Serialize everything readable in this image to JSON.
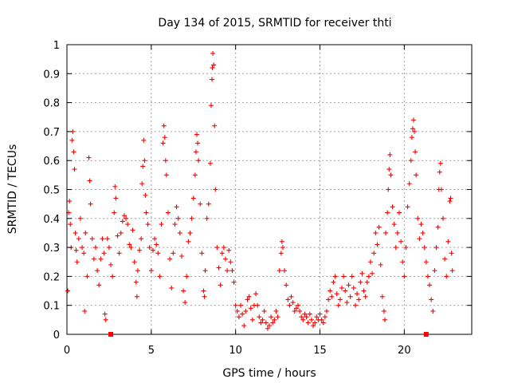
{
  "chart_data": {
    "type": "scatter",
    "title": "Day 134 of 2015, SRMTID for receiver thti",
    "xlabel": "GPS time / hours",
    "ylabel": "SRMTID / TECUs",
    "xlim": [
      0,
      24
    ],
    "ylim": [
      0,
      1
    ],
    "xticks": [
      0,
      5,
      10,
      15,
      20
    ],
    "yticks": [
      0,
      0.1,
      0.2,
      0.3,
      0.4,
      0.5,
      0.6,
      0.7,
      0.8,
      0.9,
      1
    ],
    "grid": true,
    "marker": "plus",
    "color": "#ff0000",
    "gap_markers_x": [
      2.6,
      21.3
    ],
    "series": [
      {
        "name": "SRMTID",
        "points": [
          [
            0.05,
            0.15
          ],
          [
            0.1,
            0.42
          ],
          [
            0.15,
            0.46
          ],
          [
            0.2,
            0.38
          ],
          [
            0.25,
            0.3
          ],
          [
            0.3,
            0.67
          ],
          [
            0.35,
            0.7
          ],
          [
            0.4,
            0.63
          ],
          [
            0.45,
            0.57
          ],
          [
            0.5,
            0.35
          ],
          [
            0.55,
            0.29
          ],
          [
            0.6,
            0.25
          ],
          [
            0.7,
            0.33
          ],
          [
            0.8,
            0.4
          ],
          [
            0.9,
            0.3
          ],
          [
            1.0,
            0.28
          ],
          [
            1.05,
            0.08
          ],
          [
            1.1,
            0.35
          ],
          [
            1.2,
            0.2
          ],
          [
            1.3,
            0.61
          ],
          [
            1.35,
            0.53
          ],
          [
            1.4,
            0.45
          ],
          [
            1.5,
            0.33
          ],
          [
            1.6,
            0.26
          ],
          [
            1.7,
            0.3
          ],
          [
            1.8,
            0.22
          ],
          [
            1.9,
            0.17
          ],
          [
            2.0,
            0.26
          ],
          [
            2.1,
            0.33
          ],
          [
            2.2,
            0.28
          ],
          [
            2.25,
            0.07
          ],
          [
            2.3,
            0.05
          ],
          [
            2.4,
            0.33
          ],
          [
            2.5,
            0.3
          ],
          [
            2.6,
            0.24
          ],
          [
            2.7,
            0.2
          ],
          [
            2.8,
            0.42
          ],
          [
            2.85,
            0.51
          ],
          [
            2.9,
            0.47
          ],
          [
            3.0,
            0.34
          ],
          [
            3.1,
            0.28
          ],
          [
            3.2,
            0.35
          ],
          [
            3.3,
            0.39
          ],
          [
            3.4,
            0.41
          ],
          [
            3.5,
            0.4
          ],
          [
            3.6,
            0.38
          ],
          [
            3.7,
            0.31
          ],
          [
            3.8,
            0.3
          ],
          [
            3.9,
            0.36
          ],
          [
            4.0,
            0.25
          ],
          [
            4.1,
            0.18
          ],
          [
            4.15,
            0.13
          ],
          [
            4.2,
            0.22
          ],
          [
            4.3,
            0.29
          ],
          [
            4.4,
            0.33
          ],
          [
            4.45,
            0.52
          ],
          [
            4.5,
            0.58
          ],
          [
            4.55,
            0.67
          ],
          [
            4.6,
            0.6
          ],
          [
            4.65,
            0.48
          ],
          [
            4.7,
            0.42
          ],
          [
            4.8,
            0.38
          ],
          [
            4.9,
            0.3
          ],
          [
            5.0,
            0.22
          ],
          [
            5.1,
            0.29
          ],
          [
            5.2,
            0.33
          ],
          [
            5.3,
            0.31
          ],
          [
            5.4,
            0.28
          ],
          [
            5.5,
            0.2
          ],
          [
            5.6,
            0.38
          ],
          [
            5.7,
            0.66
          ],
          [
            5.75,
            0.72
          ],
          [
            5.8,
            0.68
          ],
          [
            5.85,
            0.6
          ],
          [
            5.9,
            0.55
          ],
          [
            6.0,
            0.42
          ],
          [
            6.1,
            0.26
          ],
          [
            6.2,
            0.16
          ],
          [
            6.3,
            0.28
          ],
          [
            6.4,
            0.38
          ],
          [
            6.5,
            0.44
          ],
          [
            6.6,
            0.4
          ],
          [
            6.7,
            0.35
          ],
          [
            6.8,
            0.27
          ],
          [
            6.9,
            0.15
          ],
          [
            7.0,
            0.11
          ],
          [
            7.1,
            0.2
          ],
          [
            7.2,
            0.32
          ],
          [
            7.3,
            0.35
          ],
          [
            7.4,
            0.4
          ],
          [
            7.5,
            0.47
          ],
          [
            7.6,
            0.55
          ],
          [
            7.65,
            0.63
          ],
          [
            7.7,
            0.69
          ],
          [
            7.75,
            0.66
          ],
          [
            7.8,
            0.6
          ],
          [
            7.9,
            0.45
          ],
          [
            8.0,
            0.28
          ],
          [
            8.1,
            0.15
          ],
          [
            8.15,
            0.13
          ],
          [
            8.2,
            0.22
          ],
          [
            8.3,
            0.4
          ],
          [
            8.4,
            0.45
          ],
          [
            8.5,
            0.59
          ],
          [
            8.55,
            0.79
          ],
          [
            8.6,
            0.88
          ],
          [
            8.62,
            0.92
          ],
          [
            8.65,
            0.97
          ],
          [
            8.7,
            0.93
          ],
          [
            8.75,
            0.72
          ],
          [
            8.8,
            0.5
          ],
          [
            8.9,
            0.3
          ],
          [
            9.0,
            0.23
          ],
          [
            9.1,
            0.17
          ],
          [
            9.2,
            0.28
          ],
          [
            9.3,
            0.3
          ],
          [
            9.4,
            0.26
          ],
          [
            9.5,
            0.22
          ],
          [
            9.6,
            0.29
          ],
          [
            9.7,
            0.25
          ],
          [
            9.8,
            0.22
          ],
          [
            9.9,
            0.18
          ],
          [
            10.0,
            0.1
          ],
          [
            10.1,
            0.08
          ],
          [
            10.2,
            0.06
          ],
          [
            10.3,
            0.1
          ],
          [
            10.4,
            0.07
          ],
          [
            10.5,
            0.03
          ],
          [
            10.6,
            0.08
          ],
          [
            10.7,
            0.12
          ],
          [
            10.8,
            0.13
          ],
          [
            10.9,
            0.09
          ],
          [
            11.0,
            0.05
          ],
          [
            11.1,
            0.1
          ],
          [
            11.2,
            0.14
          ],
          [
            11.3,
            0.1
          ],
          [
            11.4,
            0.06
          ],
          [
            11.5,
            0.04
          ],
          [
            11.6,
            0.05
          ],
          [
            11.7,
            0.08
          ],
          [
            11.8,
            0.04
          ],
          [
            11.9,
            0.02
          ],
          [
            12.0,
            0.03
          ],
          [
            12.1,
            0.06
          ],
          [
            12.2,
            0.04
          ],
          [
            12.3,
            0.05
          ],
          [
            12.4,
            0.08
          ],
          [
            12.5,
            0.06
          ],
          [
            12.6,
            0.22
          ],
          [
            12.7,
            0.28
          ],
          [
            12.75,
            0.32
          ],
          [
            12.8,
            0.3
          ],
          [
            12.9,
            0.22
          ],
          [
            13.0,
            0.17
          ],
          [
            13.1,
            0.12
          ],
          [
            13.2,
            0.1
          ],
          [
            13.3,
            0.13
          ],
          [
            13.4,
            0.11
          ],
          [
            13.5,
            0.08
          ],
          [
            13.6,
            0.09
          ],
          [
            13.7,
            0.1
          ],
          [
            13.8,
            0.08
          ],
          [
            13.9,
            0.06
          ],
          [
            14.0,
            0.05
          ],
          [
            14.1,
            0.07
          ],
          [
            14.2,
            0.06
          ],
          [
            14.3,
            0.04
          ],
          [
            14.4,
            0.07
          ],
          [
            14.5,
            0.05
          ],
          [
            14.6,
            0.03
          ],
          [
            14.7,
            0.04
          ],
          [
            14.8,
            0.06
          ],
          [
            14.9,
            0.05
          ],
          [
            15.0,
            0.07
          ],
          [
            15.1,
            0.05
          ],
          [
            15.2,
            0.04
          ],
          [
            15.3,
            0.06
          ],
          [
            15.4,
            0.08
          ],
          [
            15.5,
            0.12
          ],
          [
            15.6,
            0.15
          ],
          [
            15.7,
            0.13
          ],
          [
            15.8,
            0.18
          ],
          [
            15.9,
            0.2
          ],
          [
            16.0,
            0.14
          ],
          [
            16.1,
            0.1
          ],
          [
            16.2,
            0.12
          ],
          [
            16.3,
            0.16
          ],
          [
            16.4,
            0.2
          ],
          [
            16.5,
            0.15
          ],
          [
            16.6,
            0.11
          ],
          [
            16.7,
            0.17
          ],
          [
            16.8,
            0.13
          ],
          [
            16.9,
            0.2
          ],
          [
            17.0,
            0.16
          ],
          [
            17.1,
            0.1
          ],
          [
            17.2,
            0.14
          ],
          [
            17.3,
            0.12
          ],
          [
            17.4,
            0.18
          ],
          [
            17.5,
            0.21
          ],
          [
            17.6,
            0.15
          ],
          [
            17.7,
            0.13
          ],
          [
            17.8,
            0.18
          ],
          [
            17.9,
            0.2
          ],
          [
            18.0,
            0.25
          ],
          [
            18.1,
            0.21
          ],
          [
            18.2,
            0.28
          ],
          [
            18.3,
            0.35
          ],
          [
            18.4,
            0.31
          ],
          [
            18.5,
            0.37
          ],
          [
            18.6,
            0.24
          ],
          [
            18.7,
            0.13
          ],
          [
            18.8,
            0.08
          ],
          [
            18.85,
            0.05
          ],
          [
            18.9,
            0.35
          ],
          [
            19.0,
            0.42
          ],
          [
            19.05,
            0.5
          ],
          [
            19.1,
            0.57
          ],
          [
            19.15,
            0.62
          ],
          [
            19.2,
            0.55
          ],
          [
            19.3,
            0.44
          ],
          [
            19.4,
            0.38
          ],
          [
            19.5,
            0.3
          ],
          [
            19.6,
            0.35
          ],
          [
            19.7,
            0.42
          ],
          [
            19.8,
            0.32
          ],
          [
            19.9,
            0.25
          ],
          [
            20.0,
            0.2
          ],
          [
            20.1,
            0.3
          ],
          [
            20.2,
            0.44
          ],
          [
            20.3,
            0.52
          ],
          [
            20.4,
            0.6
          ],
          [
            20.45,
            0.68
          ],
          [
            20.5,
            0.71
          ],
          [
            20.55,
            0.74
          ],
          [
            20.6,
            0.7
          ],
          [
            20.65,
            0.63
          ],
          [
            20.7,
            0.55
          ],
          [
            20.8,
            0.4
          ],
          [
            20.9,
            0.33
          ],
          [
            21.0,
            0.38
          ],
          [
            21.1,
            0.35
          ],
          [
            21.2,
            0.3
          ],
          [
            21.3,
            0.25
          ],
          [
            21.4,
            0.2
          ],
          [
            21.5,
            0.17
          ],
          [
            21.6,
            0.12
          ],
          [
            21.7,
            0.08
          ],
          [
            21.8,
            0.22
          ],
          [
            21.9,
            0.3
          ],
          [
            22.0,
            0.37
          ],
          [
            22.05,
            0.5
          ],
          [
            22.1,
            0.56
          ],
          [
            22.15,
            0.59
          ],
          [
            22.2,
            0.5
          ],
          [
            22.3,
            0.4
          ],
          [
            22.4,
            0.26
          ],
          [
            22.5,
            0.2
          ],
          [
            22.6,
            0.32
          ],
          [
            22.7,
            0.46
          ],
          [
            22.75,
            0.47
          ],
          [
            22.8,
            0.28
          ],
          [
            22.85,
            0.22
          ]
        ]
      }
    ]
  }
}
